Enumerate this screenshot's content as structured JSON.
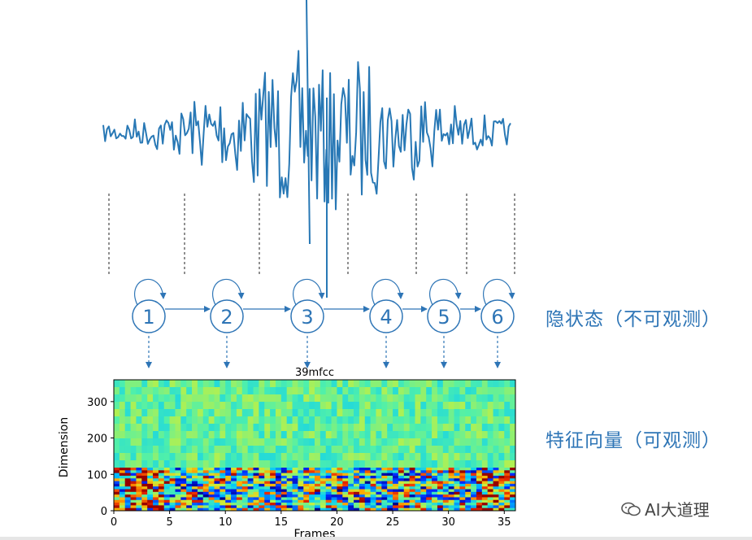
{
  "labels": {
    "hidden_states": "隐状态（不可观测）",
    "feature_vectors": "特征向量（可观测）",
    "watermark": "AI大道理"
  },
  "states": [
    "1",
    "2",
    "3",
    "4",
    "5",
    "6"
  ],
  "spectrogram": {
    "title": "39mfcc",
    "xlabel": "Frames",
    "ylabel": "Dimension",
    "x_ticks": [
      "0",
      "5",
      "10",
      "15",
      "20",
      "25",
      "30",
      "35"
    ],
    "y_ticks": [
      "0",
      "100",
      "200",
      "300"
    ],
    "xlim": [
      0,
      36
    ],
    "ylim": [
      0,
      360
    ]
  },
  "colors": {
    "accent": "#2e75b6",
    "waveform": "#2878b5"
  },
  "icons": {
    "watermark": "chat-bubble-icon"
  }
}
